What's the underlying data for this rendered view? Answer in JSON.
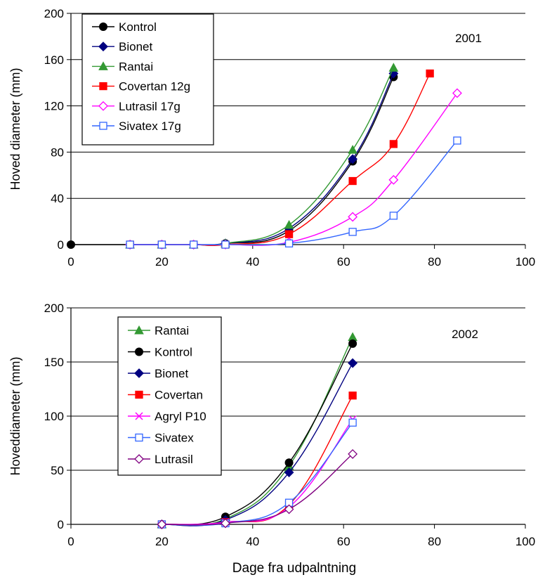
{
  "xlabel": "Dage fra udpalntning",
  "chart_data": [
    {
      "type": "line",
      "annotation": "2001",
      "ylabel": "Hoved diameter (mm)",
      "xlim": [
        0,
        100
      ],
      "ylim": [
        0,
        200
      ],
      "xticks": [
        "0",
        "20",
        "40",
        "60",
        "80",
        "100"
      ],
      "yticks": [
        "0",
        "40",
        "80",
        "120",
        "160",
        "200"
      ],
      "grid": "horizontal",
      "legend_position": "top-left",
      "series": [
        {
          "name": "Kontrol",
          "color": "#000000",
          "marker": "circle-filled",
          "points": [
            [
              0,
              0
            ],
            [
              13,
              0
            ],
            [
              20,
              0
            ],
            [
              27,
              0
            ],
            [
              34,
              1
            ],
            [
              48,
              12
            ],
            [
              62,
              72
            ],
            [
              71,
              145
            ]
          ]
        },
        {
          "name": "Bionet",
          "color": "#000080",
          "marker": "diamond-filled",
          "points": [
            [
              13,
              0
            ],
            [
              20,
              0
            ],
            [
              27,
              0
            ],
            [
              34,
              1
            ],
            [
              48,
              14
            ],
            [
              62,
              74
            ],
            [
              71,
              148
            ]
          ]
        },
        {
          "name": "Rantai",
          "color": "#339933",
          "marker": "triangle-filled",
          "points": [
            [
              13,
              0
            ],
            [
              20,
              0
            ],
            [
              27,
              0
            ],
            [
              34,
              1
            ],
            [
              48,
              17
            ],
            [
              62,
              82
            ],
            [
              71,
              153
            ]
          ]
        },
        {
          "name": "Covertan 12g",
          "color": "#ff0000",
          "marker": "square-filled",
          "points": [
            [
              13,
              0
            ],
            [
              20,
              0
            ],
            [
              27,
              0
            ],
            [
              34,
              0
            ],
            [
              48,
              9
            ],
            [
              62,
              55
            ],
            [
              71,
              87
            ],
            [
              79,
              148
            ]
          ]
        },
        {
          "name": "Lutrasil 17g",
          "color": "#ff00ff",
          "marker": "diamond-open",
          "points": [
            [
              13,
              0
            ],
            [
              20,
              0
            ],
            [
              27,
              0
            ],
            [
              34,
              0
            ],
            [
              48,
              2
            ],
            [
              62,
              24
            ],
            [
              71,
              56
            ],
            [
              85,
              131
            ]
          ]
        },
        {
          "name": "Sivatex 17g",
          "color": "#3366ff",
          "marker": "square-open",
          "points": [
            [
              13,
              0
            ],
            [
              20,
              0
            ],
            [
              27,
              0
            ],
            [
              34,
              0
            ],
            [
              48,
              1
            ],
            [
              62,
              11
            ],
            [
              71,
              25
            ],
            [
              85,
              90
            ]
          ]
        }
      ]
    },
    {
      "type": "line",
      "annotation": "2002",
      "ylabel": "Hoveddiameter (mm)",
      "xlim": [
        0,
        100
      ],
      "ylim": [
        0,
        200
      ],
      "xticks": [
        "0",
        "20",
        "40",
        "60",
        "80",
        "100"
      ],
      "yticks": [
        "0",
        "50",
        "100",
        "150",
        "200"
      ],
      "grid": "horizontal",
      "legend_position": "top-left",
      "series": [
        {
          "name": "Rantai",
          "color": "#339933",
          "marker": "triangle-filled",
          "points": [
            [
              20,
              0
            ],
            [
              34,
              5
            ],
            [
              48,
              54
            ],
            [
              62,
              173
            ]
          ]
        },
        {
          "name": "Kontrol",
          "color": "#000000",
          "marker": "circle-filled",
          "points": [
            [
              20,
              0
            ],
            [
              34,
              7
            ],
            [
              48,
              57
            ],
            [
              62,
              167
            ]
          ]
        },
        {
          "name": "Bionet",
          "color": "#000080",
          "marker": "diamond-filled",
          "points": [
            [
              20,
              0
            ],
            [
              34,
              4
            ],
            [
              48,
              48
            ],
            [
              62,
              149
            ]
          ]
        },
        {
          "name": "Covertan",
          "color": "#ff0000",
          "marker": "square-filled",
          "points": [
            [
              20,
              0
            ],
            [
              34,
              2
            ],
            [
              48,
              18
            ],
            [
              62,
              119
            ]
          ]
        },
        {
          "name": "Agryl P10",
          "color": "#ff00ff",
          "marker": "x",
          "points": [
            [
              20,
              0
            ],
            [
              34,
              2
            ],
            [
              48,
              16
            ],
            [
              62,
              97
            ]
          ]
        },
        {
          "name": "Sivatex",
          "color": "#3366ff",
          "marker": "square-open",
          "points": [
            [
              20,
              0
            ],
            [
              34,
              1
            ],
            [
              48,
              20
            ],
            [
              62,
              94
            ]
          ]
        },
        {
          "name": "Lutrasil",
          "color": "#800080",
          "marker": "diamond-open",
          "points": [
            [
              20,
              0
            ],
            [
              34,
              1
            ],
            [
              48,
              14
            ],
            [
              62,
              65
            ]
          ]
        }
      ]
    }
  ]
}
